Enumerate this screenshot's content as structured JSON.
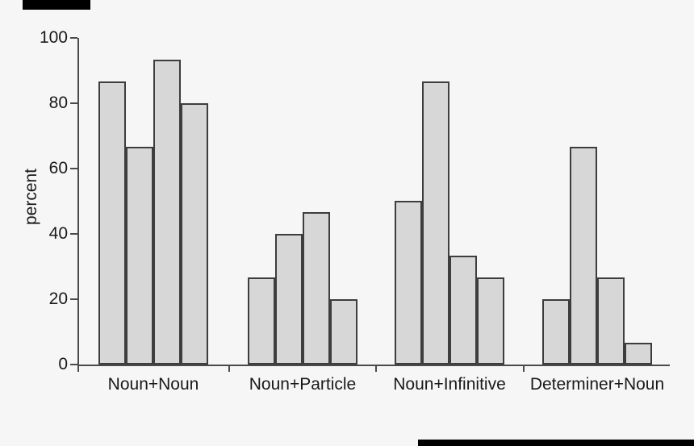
{
  "chart_data": {
    "type": "bar",
    "title": "",
    "xlabel": "",
    "ylabel": "percent",
    "ylim": [
      0,
      100
    ],
    "yticks": [
      0,
      20,
      40,
      60,
      80,
      100
    ],
    "grid": false,
    "legend": "none",
    "categories": [
      "Noun+Noun",
      "Noun+Particle",
      "Noun+Infinitive",
      "Determiner+Noun"
    ],
    "groups": [
      {
        "category": "Noun+Noun",
        "values": [
          86.7,
          66.7,
          93.3,
          80.0
        ]
      },
      {
        "category": "Noun+Particle",
        "values": [
          26.7,
          40.0,
          46.7,
          20.0
        ]
      },
      {
        "category": "Noun+Infinitive",
        "values": [
          50.0,
          86.7,
          33.3,
          26.7
        ]
      },
      {
        "category": "Determiner+Noun",
        "values": [
          20.0,
          66.7,
          26.7,
          6.7
        ]
      }
    ],
    "colors": {
      "background": "#f6f6f6",
      "bar_fill": "#d7d7d7",
      "bar_border": "#3d3d3d",
      "axis": "#4a4a4a",
      "text": "#1a1a1a"
    }
  }
}
